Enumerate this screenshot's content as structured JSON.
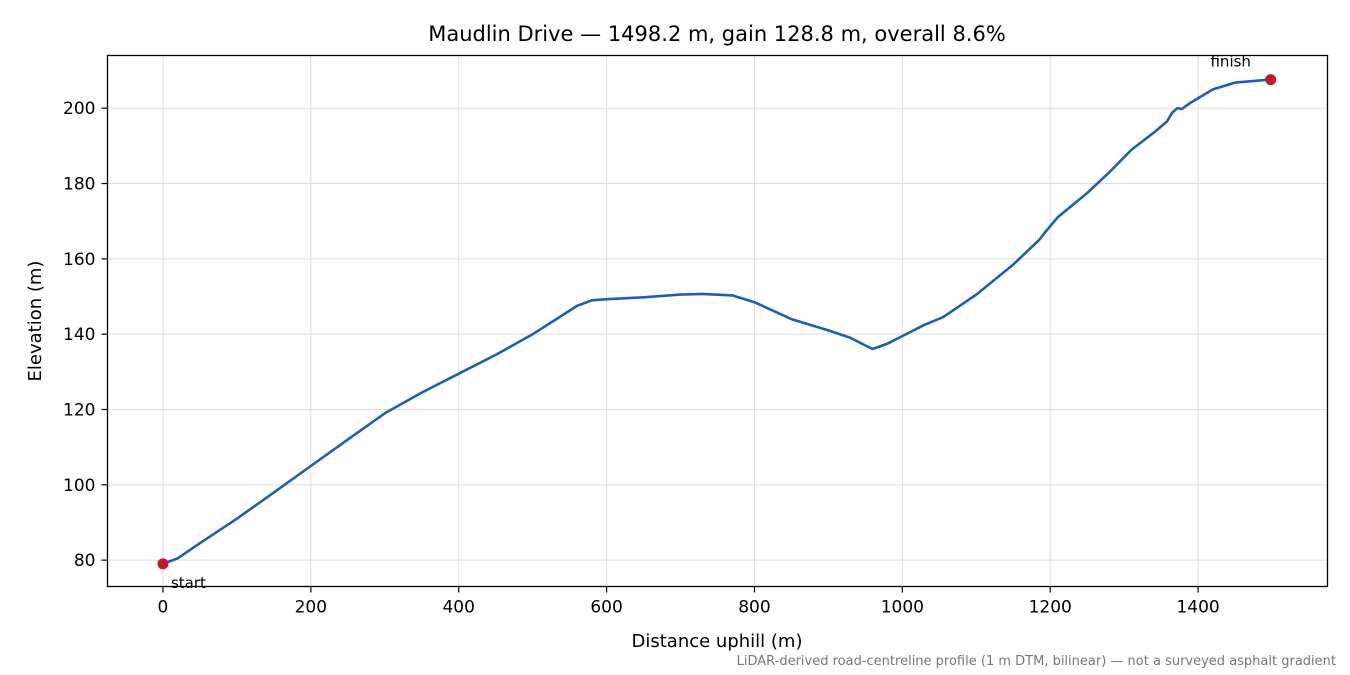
{
  "chart_data": {
    "type": "line",
    "title": "Maudlin Drive — 1498.2 m, gain 128.8 m, overall 8.6%",
    "xlabel": "Distance uphill (m)",
    "ylabel": "Elevation (m)",
    "xlim": [
      -75,
      1575
    ],
    "ylim": [
      73,
      214
    ],
    "xticks": [
      0,
      200,
      400,
      600,
      800,
      1000,
      1200,
      1400
    ],
    "yticks": [
      80,
      100,
      120,
      140,
      160,
      180,
      200
    ],
    "grid": true,
    "line_color": "#1f5faf",
    "marker_color": "#c0192f",
    "series": [
      {
        "x": [
          0,
          20,
          50,
          100,
          150,
          200,
          250,
          300,
          350,
          400,
          450,
          500,
          540,
          560,
          580,
          600,
          650,
          700,
          730,
          770,
          800,
          850,
          900,
          930,
          950,
          960,
          980,
          1000,
          1030,
          1055,
          1070,
          1100,
          1150,
          1185,
          1195,
          1210,
          1250,
          1280,
          1310,
          1340,
          1358,
          1365,
          1372,
          1378,
          1390,
          1420,
          1450,
          1498.2
        ],
        "y": [
          79,
          80.5,
          84.5,
          91,
          98,
          105,
          112,
          119,
          124.5,
          129.5,
          134.5,
          140,
          145,
          147.5,
          149,
          149.3,
          149.8,
          150.5,
          150.7,
          150.3,
          148.5,
          144,
          141,
          139,
          137,
          136.1,
          137.5,
          139.5,
          142.5,
          144.5,
          146.5,
          150.5,
          158.5,
          165,
          167.5,
          171,
          177.5,
          183,
          189,
          193.5,
          196.5,
          198.8,
          200,
          199.8,
          201.5,
          205,
          206.8,
          207.6
        ]
      }
    ],
    "points": [
      {
        "label": "start",
        "x": 0,
        "y": 79
      },
      {
        "label": "finish",
        "x": 1498.2,
        "y": 207.6
      }
    ],
    "footnote": "LiDAR-derived road-centreline profile (1 m DTM, bilinear) — not a surveyed asphalt gradient"
  }
}
